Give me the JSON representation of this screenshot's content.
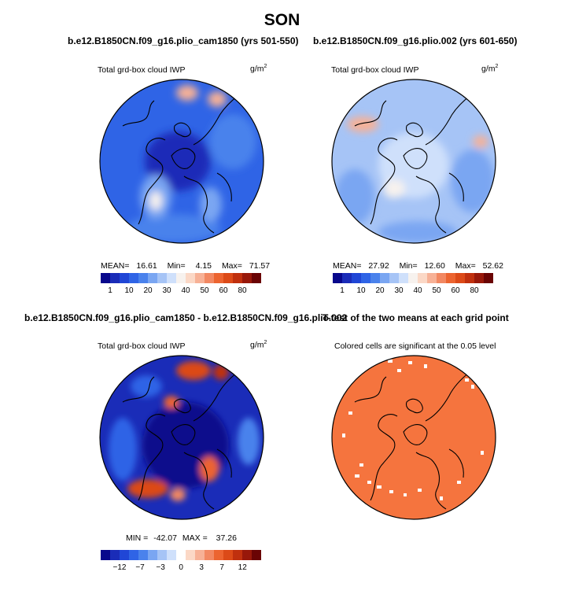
{
  "page": {
    "title": "SON"
  },
  "panels": {
    "p1": {
      "header": "b.e12.B1850CN.f09_g16.plio_cam1850 (yrs 501-550)",
      "variable": "Total grd-box cloud IWP",
      "units": "g/m",
      "units_sup": "2",
      "stats": {
        "mean_label": "MEAN=",
        "mean": "16.61",
        "min_label": "Min=",
        "min": "4.15",
        "max_label": "Max=",
        "max": "71.57"
      },
      "colorbar_ticks": [
        "1",
        "10",
        "20",
        "30",
        "40",
        "50",
        "60",
        "80"
      ]
    },
    "p2": {
      "header": "b.e12.B1850CN.f09_g16.plio.002 (yrs 601-650)",
      "variable": "Total grd-box cloud IWP",
      "units": "g/m",
      "units_sup": "2",
      "stats": {
        "mean_label": "MEAN=",
        "mean": "27.92",
        "min_label": "Min=",
        "min": "12.60",
        "max_label": "Max=",
        "max": "52.62"
      },
      "colorbar_ticks": [
        "1",
        "10",
        "20",
        "30",
        "40",
        "50",
        "60",
        "80"
      ]
    },
    "p3": {
      "header": "b.e12.B1850CN.f09_g16.plio_cam1850 - b.e12.B1850CN.f09_g16.plio.002",
      "variable": "Total grd-box cloud IWP",
      "units": "g/m",
      "units_sup": "2",
      "stats": {
        "min_label": "MIN =",
        "min": "-42.07",
        "max_label": "MAX =",
        "max": "37.26"
      },
      "colorbar_ticks": [
        "−12",
        "−7",
        "−3",
        "0",
        "3",
        "7",
        "12"
      ]
    },
    "p4": {
      "header": "T-test of the two means at each grid point",
      "subtitle": "Colored cells are significant at the 0.05 level"
    }
  },
  "colors": {
    "abs_scale": [
      "#08088c",
      "#1a2cb8",
      "#2046d6",
      "#2f64e6",
      "#4a82ec",
      "#7aa6f2",
      "#a6c4f6",
      "#cfe0fb",
      "#f7f2ee",
      "#fbd8c6",
      "#f7b196",
      "#f28862",
      "#ec6430",
      "#dc4a18",
      "#c0300e",
      "#98180a",
      "#6a0404"
    ],
    "diff_scale": [
      "#08088c",
      "#1a2cb8",
      "#2046d6",
      "#2f64e6",
      "#4a82ec",
      "#7aa6f2",
      "#a6c4f6",
      "#cfe0fb",
      "#ffffff",
      "#fbd8c6",
      "#f7b196",
      "#f28862",
      "#ec6430",
      "#dc4a18",
      "#c0300e",
      "#98180a",
      "#6a0404"
    ],
    "significance": "#f5743e",
    "coast": "#000000"
  },
  "chart_data": [
    {
      "type": "heatmap",
      "title": "b.e12.B1850CN.f09_g16.plio_cam1850 (yrs 501-550)",
      "variable": "Total grd-box cloud IWP",
      "units": "g/m2",
      "season": "SON",
      "projection": "north polar stereographic",
      "stats": {
        "mean": 16.61,
        "min": 4.15,
        "max": 71.57
      },
      "colorbar_ticks": [
        1,
        10,
        20,
        30,
        40,
        50,
        60,
        80
      ]
    },
    {
      "type": "heatmap",
      "title": "b.e12.B1850CN.f09_g16.plio.002 (yrs 601-650)",
      "variable": "Total grd-box cloud IWP",
      "units": "g/m2",
      "season": "SON",
      "projection": "north polar stereographic",
      "stats": {
        "mean": 27.92,
        "min": 12.6,
        "max": 52.62
      },
      "colorbar_ticks": [
        1,
        10,
        20,
        30,
        40,
        50,
        60,
        80
      ]
    },
    {
      "type": "heatmap",
      "title": "b.e12.B1850CN.f09_g16.plio_cam1850 - b.e12.B1850CN.f09_g16.plio.002",
      "variable": "Total grd-box cloud IWP",
      "units": "g/m2",
      "season": "SON",
      "projection": "north polar stereographic",
      "stats": {
        "min": -42.07,
        "max": 37.26
      },
      "colorbar_ticks": [
        -12,
        -7,
        -3,
        0,
        3,
        7,
        12
      ]
    },
    {
      "type": "heatmap",
      "title": "T-test of the two means at each grid point",
      "subtitle": "Colored cells are significant at the 0.05 level",
      "projection": "north polar stereographic",
      "significance_level": 0.05
    }
  ]
}
